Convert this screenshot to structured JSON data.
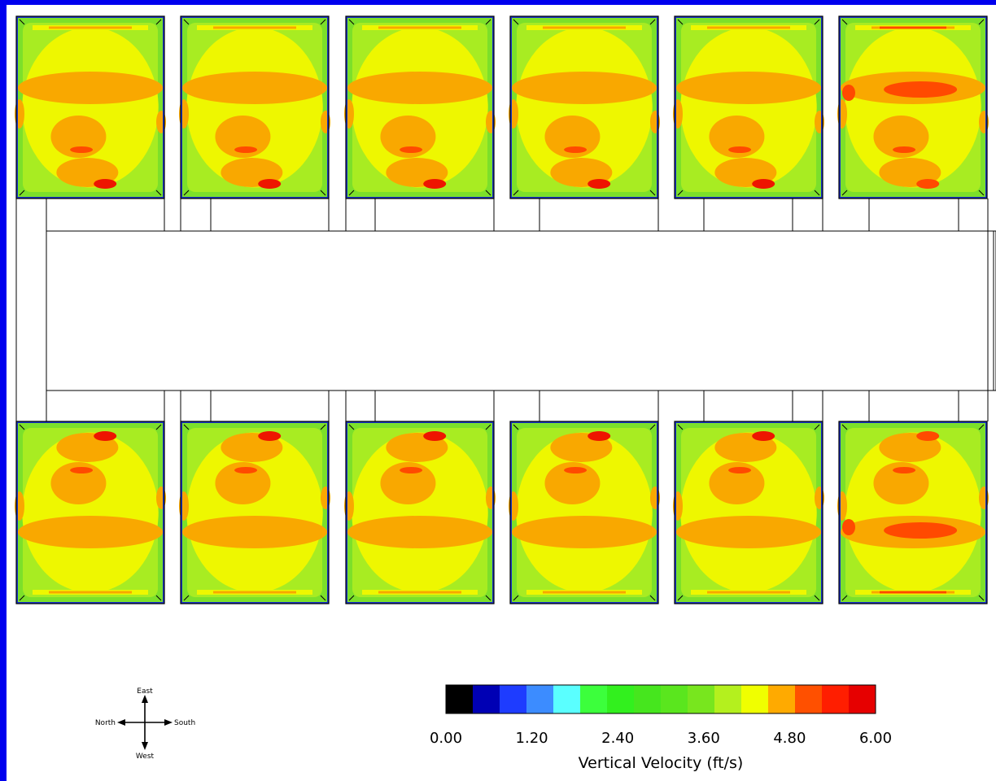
{
  "colorbar": {
    "title": "Vertical Velocity (ft/s)",
    "tick_labels": [
      "0.00",
      "1.20",
      "2.40",
      "3.60",
      "4.80",
      "6.00"
    ],
    "colors": [
      "#000000",
      "#0000b4",
      "#1e3cff",
      "#3c8cff",
      "#5affff",
      "#3cff3c",
      "#32f01e",
      "#46e61e",
      "#5ae61e",
      "#78e61e",
      "#b4f01e",
      "#f0ff00",
      "#ffaa00",
      "#ff5000",
      "#ff1e00",
      "#e60000"
    ]
  },
  "compass": {
    "north": "North",
    "south": "South",
    "east": "East",
    "west": "West"
  },
  "contour_palette": {
    "outer_green": "#7ce02a",
    "mid_green": "#a8ec22",
    "yellow": "#eef700",
    "orange": "#f9a800",
    "red_orange": "#ff4a00",
    "red": "#ee1500",
    "frame_blue": "#1832c8"
  }
}
